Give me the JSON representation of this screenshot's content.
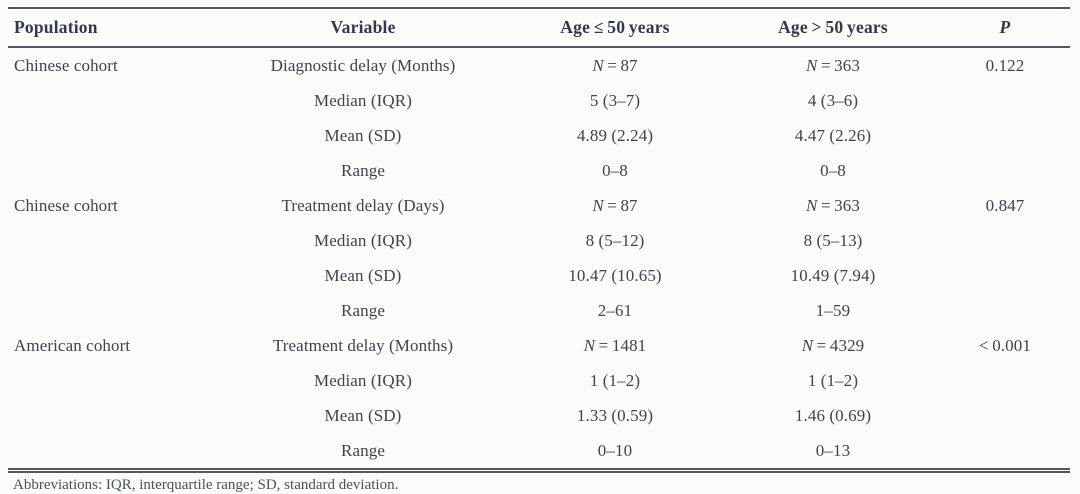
{
  "table": {
    "headers": {
      "population": "Population",
      "variable": "Variable",
      "age_le": "Age ≤ 50 years",
      "age_gt": "Age > 50 years",
      "p": "P"
    },
    "rows": [
      {
        "population": "Chinese cohort",
        "variable": "Diagnostic delay (Months)",
        "le_i": "N",
        "le_t": " = 87",
        "gt_i": "N",
        "gt_t": " = 363",
        "p": "0.122"
      },
      {
        "population": "",
        "variable": "Median (IQR)",
        "le_i": "",
        "le_t": "5 (3–7)",
        "gt_i": "",
        "gt_t": "4 (3–6)",
        "p": ""
      },
      {
        "population": "",
        "variable": "Mean (SD)",
        "le_i": "",
        "le_t": "4.89 (2.24)",
        "gt_i": "",
        "gt_t": "4.47 (2.26)",
        "p": ""
      },
      {
        "population": "",
        "variable": "Range",
        "le_i": "",
        "le_t": "0–8",
        "gt_i": "",
        "gt_t": "0–8",
        "p": ""
      },
      {
        "population": "Chinese cohort",
        "variable": "Treatment delay (Days)",
        "le_i": "N",
        "le_t": " = 87",
        "gt_i": "N",
        "gt_t": " = 363",
        "p": "0.847"
      },
      {
        "population": "",
        "variable": "Median (IQR)",
        "le_i": "",
        "le_t": "8 (5–12)",
        "gt_i": "",
        "gt_t": "8 (5–13)",
        "p": ""
      },
      {
        "population": "",
        "variable": "Mean (SD)",
        "le_i": "",
        "le_t": "10.47 (10.65)",
        "gt_i": "",
        "gt_t": "10.49 (7.94)",
        "p": ""
      },
      {
        "population": "",
        "variable": "Range",
        "le_i": "",
        "le_t": "2–61",
        "gt_i": "",
        "gt_t": "1–59",
        "p": ""
      },
      {
        "population": "American cohort",
        "variable": "Treatment delay (Months)",
        "le_i": "N",
        "le_t": " = 1481",
        "gt_i": "N",
        "gt_t": " = 4329",
        "p": "< 0.001"
      },
      {
        "population": "",
        "variable": "Median (IQR)",
        "le_i": "",
        "le_t": "1 (1–2)",
        "gt_i": "",
        "gt_t": "1 (1–2)",
        "p": ""
      },
      {
        "population": "",
        "variable": "Mean (SD)",
        "le_i": "",
        "le_t": "1.33 (0.59)",
        "gt_i": "",
        "gt_t": "1.46 (0.69)",
        "p": ""
      },
      {
        "population": "",
        "variable": "Range",
        "le_i": "",
        "le_t": "0–10",
        "gt_i": "",
        "gt_t": "0–13",
        "p": ""
      }
    ]
  },
  "footnote": {
    "text": "Abbreviations: IQR, interquartile range; SD, standard deviation."
  },
  "colors": {
    "rule": "#51575f",
    "text": "#3d4451",
    "background": "#fbfbf9"
  }
}
